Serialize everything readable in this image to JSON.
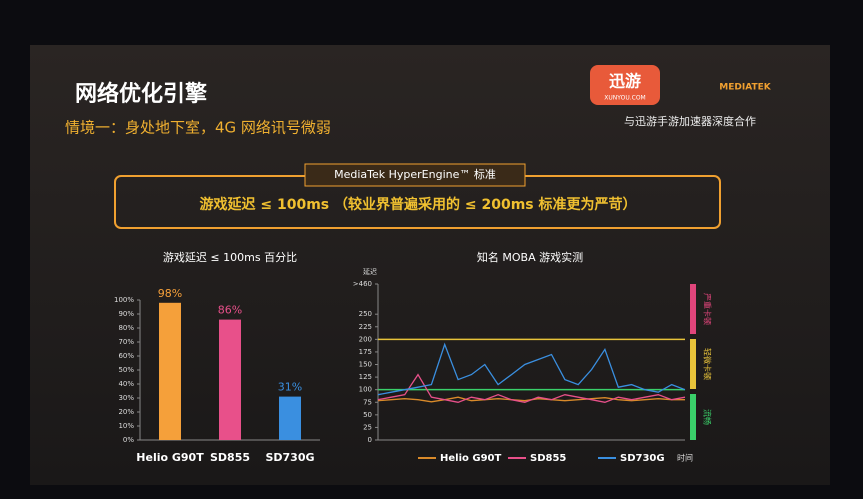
{
  "slide": {
    "title": "网络优化引擎",
    "subtitle": "情境一：身处地下室，4G 网络讯号微弱",
    "logo": "迅游",
    "logo_url": "XUNYOU.COM",
    "partner": "MEDIATEK",
    "partner_note": "与迅游手游加速器深度合作",
    "box_title": "MediaTek HyperEngine™ 标准",
    "box_text": "游戏延迟 ≤ 100ms （较业界普遍采用的 ≤ 200ms 标准更为严苛）"
  },
  "chart_data": [
    {
      "type": "bar",
      "title": "游戏延迟 ≤ 100ms 百分比",
      "categories": [
        "Helio G90T",
        "SD855",
        "SD730G"
      ],
      "values": [
        98,
        86,
        31
      ],
      "value_labels": [
        "98%",
        "86%",
        "31%"
      ],
      "colors": [
        "#f5a03a",
        "#e8508a",
        "#3a8fe0"
      ],
      "ylim": [
        0,
        100
      ],
      "yticks": [
        {
          "value": 0,
          "label": "0%"
        },
        {
          "value": 10,
          "label": "10%"
        },
        {
          "value": 20,
          "label": "20%"
        },
        {
          "value": 30,
          "label": "30%"
        },
        {
          "value": 40,
          "label": "40%"
        },
        {
          "value": 50,
          "label": "50%"
        },
        {
          "value": 60,
          "label": "60%"
        },
        {
          "value": 70,
          "label": "70%"
        },
        {
          "value": 80,
          "label": "80%"
        },
        {
          "value": 90,
          "label": "90%"
        },
        {
          "value": 100,
          "label": "100%"
        }
      ]
    },
    {
      "type": "line",
      "title": "知名 MOBA 游戏实测",
      "y_label": "延迟",
      "x_label": "时间",
      "ylim": [
        0,
        310
      ],
      "yticks": [
        0,
        25,
        50,
        75,
        100,
        125,
        150,
        175,
        200,
        225,
        250,
        {
          "value": 310,
          "label": ">460"
        }
      ],
      "reference_lines": [
        {
          "value": 200,
          "color": "#e8c33a"
        },
        {
          "value": 100,
          "color": "#3ad06a"
        }
      ],
      "zones": [
        {
          "label": "严重卡顿",
          "color": "#e0457b"
        },
        {
          "label": "轻微卡顿",
          "color": "#e8c33a"
        },
        {
          "label": "流畅",
          "color": "#3ad06a"
        }
      ],
      "series": [
        {
          "name": "Helio G90T",
          "color": "#d98a2a",
          "values": [
            78,
            80,
            82,
            80,
            76,
            80,
            85,
            78,
            80,
            82,
            80,
            78,
            82,
            80,
            78,
            80,
            82,
            84,
            80,
            78,
            80,
            82,
            80,
            80
          ]
        },
        {
          "name": "SD855",
          "color": "#e8508a",
          "values": [
            80,
            85,
            90,
            130,
            85,
            80,
            75,
            85,
            80,
            90,
            80,
            75,
            85,
            80,
            90,
            85,
            80,
            75,
            85,
            80,
            85,
            90,
            80,
            85
          ]
        },
        {
          "name": "SD730G",
          "color": "#3a8fe0",
          "values": [
            90,
            95,
            100,
            105,
            110,
            190,
            120,
            130,
            150,
            110,
            130,
            150,
            160,
            170,
            120,
            110,
            140,
            180,
            105,
            110,
            100,
            95,
            110,
            100
          ]
        }
      ]
    }
  ]
}
